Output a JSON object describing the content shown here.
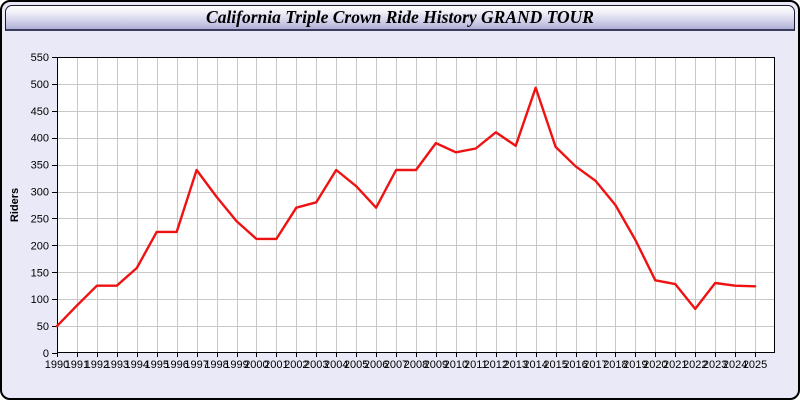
{
  "window": {
    "title": "California Triple Crown Ride History GRAND TOUR"
  },
  "colors": {
    "frame_background": "#e9e9f7",
    "plot_background": "#ffffff",
    "grid_color": "#c8c8c8",
    "axis_color": "#000000",
    "line_color": "#ee1212",
    "tick_label_color": "#000000"
  },
  "chart_data": {
    "type": "line",
    "title": "California Triple Crown Ride History GRAND TOUR",
    "xlabel": "",
    "ylabel": "Riders",
    "legend": false,
    "grid": true,
    "xlim": [
      1990,
      2026
    ],
    "ylim": [
      0,
      550
    ],
    "ytick_step": 50,
    "x": [
      1990,
      1991,
      1992,
      1993,
      1994,
      1995,
      1996,
      1997,
      1998,
      1999,
      2000,
      2001,
      2002,
      2003,
      2004,
      2005,
      2006,
      2007,
      2008,
      2009,
      2010,
      2011,
      2012,
      2013,
      2014,
      2015,
      2016,
      2017,
      2018,
      2019,
      2020,
      2021,
      2022,
      2023,
      2024,
      2025
    ],
    "series": [
      {
        "name": "Riders",
        "color": "#ee1212",
        "values": [
          50,
          88,
          125,
          125,
          158,
          225,
          225,
          340,
          290,
          245,
          212,
          212,
          270,
          280,
          340,
          310,
          270,
          340,
          340,
          390,
          373,
          380,
          410,
          385,
          493,
          383,
          347,
          320,
          275,
          210,
          135,
          128,
          82,
          130,
          125,
          124
        ]
      }
    ]
  }
}
